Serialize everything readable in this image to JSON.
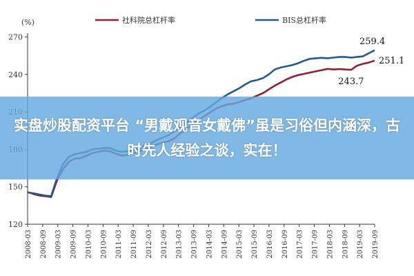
{
  "overlay": {
    "text": "实盘炒股配资平台 “男戴观音女戴佛”虽是习俗但内涵深，古时先人经验之谈，实在！",
    "color": "#64AAE1"
  },
  "chart_data": {
    "type": "line",
    "unit": "(%)",
    "ylim": [
      120,
      272
    ],
    "yticks": [
      120,
      150,
      180,
      210,
      240,
      270
    ],
    "x_tick_labels": [
      "2008-03",
      "2008-09",
      "2009-03",
      "2009-09",
      "2010-03",
      "2010-09",
      "2011-03",
      "2011-09",
      "2012-03",
      "2012-09",
      "2013-03",
      "2013-09",
      "2014-03",
      "2014-09",
      "2015-03",
      "2015-09",
      "2016-03",
      "2016-09",
      "2017-03",
      "2017-09",
      "2018-03",
      "2018-09",
      "2019-03",
      "2019-09"
    ],
    "legend_position": "top",
    "grid": false,
    "series": [
      {
        "name": "社科院总杠杆率",
        "color": "#9B1B2F",
        "values": [
          145.8,
          144.2,
          143.0,
          142.5,
          141.8,
          155.0,
          164.0,
          170.0,
          172.5,
          173.0,
          175.0,
          177.0,
          178.0,
          179.0,
          178.5,
          176.5,
          175.0,
          175.5,
          177.0,
          178.5,
          180.0,
          182.0,
          184.0,
          185.5,
          186.5,
          189.0,
          193.0,
          196.0,
          200.0,
          203.0,
          206.5,
          209.5,
          212.5,
          214.5,
          216.0,
          216.5,
          218.0,
          219.5,
          221.0,
          223.0,
          225.0,
          228.0,
          231.0,
          233.5,
          236.0,
          238.0,
          239.5,
          240.5,
          241.5,
          242.5,
          243.5,
          244.5,
          244.0,
          244.3,
          244.0,
          243.7,
          247.0,
          248.5,
          249.5,
          251.1
        ]
      },
      {
        "name": "BIS总杠杆率",
        "color": "#1F5A96",
        "values": [
          145.5,
          144.8,
          143.8,
          143.0,
          142.5,
          157.0,
          168.0,
          174.0,
          176.0,
          177.0,
          178.0,
          180.0,
          180.5,
          181.0,
          181.0,
          179.0,
          178.0,
          178.5,
          179.5,
          181.0,
          183.0,
          185.0,
          187.5,
          189.5,
          191.5,
          194.5,
          198.0,
          201.5,
          205.0,
          208.5,
          211.0,
          214.0,
          217.5,
          221.0,
          224.0,
          226.5,
          229.0,
          232.0,
          234.5,
          235.5,
          237.0,
          240.0,
          244.0,
          245.5,
          246.5,
          247.5,
          249.0,
          251.0,
          252.5,
          253.0,
          253.3,
          253.0,
          253.5,
          254.0,
          254.0,
          253.5,
          254.0,
          254.5,
          257.0,
          259.4
        ]
      }
    ],
    "annotations": [
      {
        "text": "259.4",
        "series": 1,
        "index": 59
      },
      {
        "text": "251.1",
        "series": 0,
        "index": 59
      },
      {
        "text": "243.7",
        "series": 0,
        "index": 55
      }
    ]
  }
}
